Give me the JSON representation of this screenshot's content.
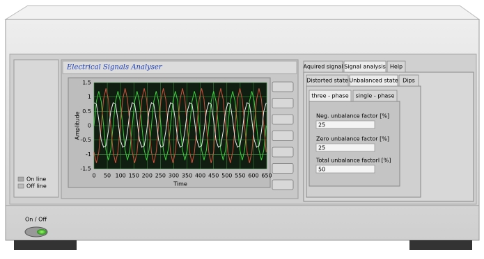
{
  "header": {
    "title": "Electrical Signals Analyser"
  },
  "status": {
    "online": "On line",
    "offline": "Off line"
  },
  "power": {
    "label": "On / Off"
  },
  "tabs": {
    "level1": [
      "Aquired signal",
      "Signal analysis",
      "Help"
    ],
    "level2": [
      "Distorted state",
      "Unbalanced state",
      "Dips"
    ],
    "level3": [
      "three - phase",
      "single - phase"
    ]
  },
  "fields": [
    {
      "label": "Neg. unbalance factor [%]",
      "value": "25"
    },
    {
      "label": "Zero unbalance factor [%]",
      "value": "25"
    },
    {
      "label": "Total unbalance factorl [%]",
      "value": "50"
    }
  ],
  "chart_data": {
    "type": "line",
    "x_label": "Time",
    "y_label": "Amplitude",
    "xlim": [
      0,
      650
    ],
    "xticks": [
      0,
      50,
      100,
      150,
      200,
      250,
      300,
      350,
      400,
      450,
      500,
      550,
      600,
      650
    ],
    "ylim": [
      -1.5,
      1.5
    ],
    "yticks": [
      -1.5,
      -1,
      -0.5,
      0,
      0.5,
      1,
      1.5
    ],
    "grid": true,
    "x": [
      0,
      9,
      18,
      27,
      36,
      45,
      54,
      63,
      72,
      81,
      90,
      99,
      108,
      117,
      126,
      135,
      144,
      153,
      162,
      171,
      180,
      189,
      198,
      207,
      216,
      225,
      234,
      243,
      252,
      261,
      270,
      279,
      288,
      297,
      306,
      315,
      324,
      333,
      342,
      351,
      360,
      369,
      378,
      387,
      396,
      405,
      414,
      423,
      432,
      441,
      450,
      459,
      468,
      477,
      486,
      495,
      504,
      513,
      522,
      531,
      540,
      549,
      558,
      567,
      576,
      585,
      594,
      603,
      612,
      621,
      630,
      639,
      648
    ],
    "series": [
      {
        "color": "#3cd23c",
        "values": [
          0,
          0.85,
          1.2,
          0.85,
          0,
          -0.85,
          -1.2,
          -0.85,
          0,
          0.85,
          1.2,
          0.85,
          0,
          -0.85,
          -1.2,
          -0.85,
          0,
          0.85,
          1.2,
          0.85,
          0,
          -0.85,
          -1.2,
          -0.85,
          0,
          0.85,
          1.2,
          0.85,
          0,
          -0.85,
          -1.2,
          -0.85,
          0,
          0.85,
          1.2,
          0.85,
          0,
          -0.85,
          -1.2,
          -0.85,
          0,
          0.85,
          1.2,
          0.85,
          0,
          -0.85,
          -1.2,
          -0.85,
          0,
          0.85,
          1.2,
          0.85,
          0,
          -0.85,
          -1.2,
          -0.85,
          0,
          0.85,
          1.2,
          0.85,
          0,
          -0.85,
          -1.2,
          -0.85,
          0,
          0.85,
          1.2,
          0.85,
          0,
          -0.85,
          -1.2,
          -0.85,
          0
        ]
      },
      {
        "color": "#d2503c",
        "values": [
          -0.92,
          -1.3,
          -0.92,
          0,
          0.92,
          1.3,
          0.92,
          0,
          -0.92,
          -1.3,
          -0.92,
          0,
          0.92,
          1.3,
          0.92,
          0,
          -0.92,
          -1.3,
          -0.92,
          0,
          0.92,
          1.3,
          0.92,
          0,
          -0.92,
          -1.3,
          -0.92,
          0,
          0.92,
          1.3,
          0.92,
          0,
          -0.92,
          -1.3,
          -0.92,
          0,
          0.92,
          1.3,
          0.92,
          0,
          -0.92,
          -1.3,
          -0.92,
          0,
          0.92,
          1.3,
          0.92,
          0,
          -0.92,
          -1.3,
          -0.92,
          0,
          0.92,
          1.3,
          0.92,
          0,
          -0.92,
          -1.3,
          -0.92,
          0,
          0.92,
          1.3,
          0.92,
          0,
          -0.92,
          -1.3,
          -0.92,
          0,
          0.92,
          1.3,
          0.92,
          0,
          -0.92
        ]
      },
      {
        "color": "#f0f0f0",
        "values": [
          0.8,
          0.75,
          0.2,
          -0.5,
          -0.75,
          -0.7,
          -0.2,
          0.5,
          0.8,
          0.75,
          0.2,
          -0.5,
          -0.75,
          -0.7,
          -0.2,
          0.5,
          0.8,
          0.75,
          0.2,
          -0.5,
          -0.75,
          -0.7,
          -0.2,
          0.5,
          0.8,
          0.75,
          0.2,
          -0.5,
          -0.75,
          -0.7,
          -0.2,
          0.5,
          0.8,
          0.75,
          0.2,
          -0.5,
          -0.75,
          -0.7,
          -0.2,
          0.5,
          0.8,
          0.75,
          0.2,
          -0.5,
          -0.75,
          -0.7,
          -0.2,
          0.5,
          0.8,
          0.75,
          0.2,
          -0.5,
          -0.75,
          -0.7,
          -0.2,
          0.5,
          0.8,
          0.75,
          0.2,
          -0.5,
          -0.75,
          -0.7,
          -0.2,
          0.5,
          0.8,
          0.75,
          0.2,
          -0.5,
          -0.75,
          -0.7,
          -0.2,
          0.5,
          0.8
        ]
      }
    ]
  }
}
